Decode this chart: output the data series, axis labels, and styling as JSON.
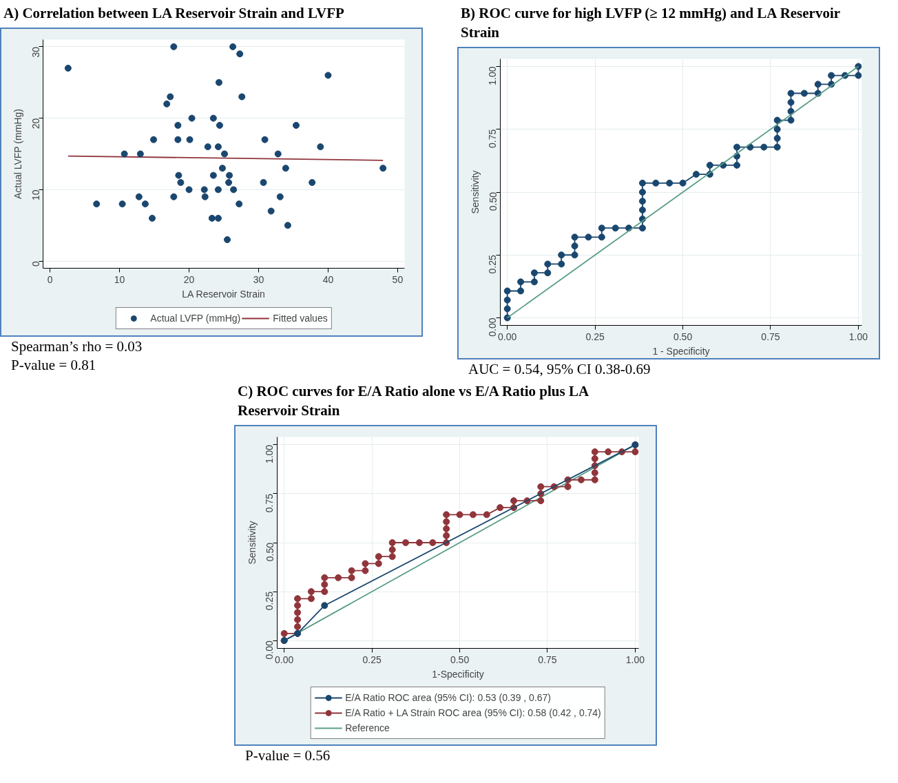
{
  "chart_data": [
    {
      "type": "scatter",
      "title": "A) Correlation between LA Reservoir Strain and LVFP",
      "xlabel": "LA Reservoir Strain",
      "ylabel": "Actual LVFP (mmHg)",
      "xlim": [
        -1,
        51
      ],
      "ylim": [
        -1,
        31
      ],
      "xticks": [
        0,
        10,
        20,
        30,
        40,
        50
      ],
      "yticks": [
        0,
        10,
        20,
        30
      ],
      "grid": "y",
      "legend": "bottom",
      "marker": "circle",
      "series": [
        {
          "name": "Actual LVFP (mmHg)",
          "type": "scatter",
          "color": "#1a476f",
          "x": [
            2.6,
            17.8,
            26.3,
            27.3,
            40,
            24.3,
            17.3,
            27.6,
            16.8,
            20.4,
            23.5,
            18.4,
            24.4,
            35.4,
            14.9,
            18.4,
            20.1,
            30.9,
            22.7,
            24.2,
            38.9,
            10.7,
            13,
            25.1,
            32.8,
            24.8,
            33.9,
            47.9,
            18.5,
            23.5,
            25.8,
            18.8,
            25.7,
            30.7,
            37.7,
            20,
            22.2,
            24.2,
            26.4,
            17.8,
            12.8,
            22.3,
            33.1,
            6.7,
            10.4,
            13.7,
            27.2,
            31.8,
            14.7,
            23.3,
            24.2,
            34.2,
            25.5
          ],
          "values": [
            27,
            30,
            30,
            29,
            26,
            25,
            23,
            23,
            22,
            20,
            20,
            19,
            19,
            19,
            17,
            17,
            17,
            17,
            16,
            16,
            16,
            15,
            15,
            15,
            15,
            13,
            13,
            13,
            12,
            12,
            12,
            11,
            11,
            11,
            11,
            10,
            10,
            10,
            10,
            9,
            9,
            9,
            9,
            8,
            8,
            8,
            8,
            7,
            6,
            6,
            6,
            5,
            3
          ]
        },
        {
          "name": "Fitted values",
          "type": "line",
          "marker": "none",
          "color": "#90353b",
          "x": [
            2.6,
            47.9
          ],
          "values": [
            14.7,
            14.1
          ]
        }
      ],
      "annotations": [
        "Spearman’s rho = 0.03",
        "P-value = 0.81"
      ]
    },
    {
      "type": "line",
      "title": "B) ROC curve for high LVFP (≥ 12 mmHg) and LA Reservoir Strain",
      "xlabel": "1 - Specificity",
      "ylabel": "Sensitivity",
      "xlim": [
        -0.02,
        1.01
      ],
      "ylim": [
        -0.03,
        1.03
      ],
      "xticks": [
        {
          "value": 0,
          "label": "0.00"
        },
        {
          "value": 0.25,
          "label": "0.25"
        },
        {
          "value": 0.5,
          "label": "0.50"
        },
        {
          "value": 0.75,
          "label": "0.75"
        },
        {
          "value": 1,
          "label": "1.00"
        }
      ],
      "yticks": [
        {
          "value": 0,
          "label": "0.00"
        },
        {
          "value": 0.25,
          "label": "0.25"
        },
        {
          "value": 0.5,
          "label": "0.50"
        },
        {
          "value": 0.75,
          "label": "0.75"
        },
        {
          "value": 1,
          "label": "1.00"
        }
      ],
      "grid": true,
      "marker": "circle",
      "series": [
        {
          "color": "#5a9e86",
          "marker": "none",
          "x": [
            0,
            1
          ],
          "values": [
            0,
            1
          ]
        },
        {
          "color": "#1a476f",
          "x": [
            0,
            0,
            0,
            0,
            0.038,
            0.038,
            0.077,
            0.077,
            0.115,
            0.115,
            0.154,
            0.154,
            0.192,
            0.192,
            0.192,
            0.231,
            0.269,
            0.269,
            0.308,
            0.346,
            0.385,
            0.385,
            0.385,
            0.385,
            0.385,
            0.385,
            0.423,
            0.462,
            0.5,
            0.538,
            0.577,
            0.577,
            0.615,
            0.654,
            0.654,
            0.654,
            0.692,
            0.731,
            0.769,
            0.769,
            0.769,
            0.769,
            0.808,
            0.808,
            0.808,
            0.808,
            0.846,
            0.885,
            0.885,
            0.923,
            0.923,
            0.962,
            1,
            1
          ],
          "values": [
            0,
            0.036,
            0.071,
            0.107,
            0.107,
            0.143,
            0.143,
            0.179,
            0.179,
            0.214,
            0.214,
            0.25,
            0.25,
            0.286,
            0.321,
            0.321,
            0.321,
            0.357,
            0.357,
            0.357,
            0.357,
            0.393,
            0.429,
            0.464,
            0.5,
            0.536,
            0.536,
            0.536,
            0.536,
            0.571,
            0.571,
            0.607,
            0.607,
            0.607,
            0.643,
            0.679,
            0.679,
            0.679,
            0.679,
            0.714,
            0.75,
            0.786,
            0.786,
            0.821,
            0.857,
            0.893,
            0.893,
            0.893,
            0.929,
            0.929,
            0.964,
            0.964,
            0.964,
            1
          ]
        }
      ],
      "annotations": [
        "AUC = 0.54, 95% CI 0.38-0.69"
      ]
    },
    {
      "type": "line",
      "title": "C) ROC curves for E/A Ratio alone vs E/A Ratio plus LA Reservoir Strain",
      "xlabel": "1-Specificity",
      "ylabel": "Sensitivity",
      "xlim": [
        -0.02,
        1.01
      ],
      "ylim": [
        -0.04,
        1.04
      ],
      "xticks": [
        {
          "value": 0,
          "label": "0.00"
        },
        {
          "value": 0.25,
          "label": "0.25"
        },
        {
          "value": 0.5,
          "label": "0.50"
        },
        {
          "value": 0.75,
          "label": "0.75"
        },
        {
          "value": 1,
          "label": "1.00"
        }
      ],
      "yticks": [
        {
          "value": 0,
          "label": "0.00"
        },
        {
          "value": 0.25,
          "label": "0.25"
        },
        {
          "value": 0.5,
          "label": "0.50"
        },
        {
          "value": 0.75,
          "label": "0.75"
        },
        {
          "value": 1,
          "label": "1.00"
        }
      ],
      "grid": true,
      "legend": "bottom",
      "marker": "circle",
      "series": [
        {
          "name": "E/A Ratio ROC area (95% CI): 0.53 (0.39 , 0.67)",
          "color": "#1a476f",
          "x": [
            0,
            0.038,
            0.115,
            1
          ],
          "values": [
            0,
            0.036,
            0.179,
            1
          ]
        },
        {
          "name": "E/A Ratio + LA Strain ROC area (95% CI): 0.58 (0.42 , 0.74)",
          "color": "#90353b",
          "x": [
            0,
            0,
            0.038,
            0.038,
            0.038,
            0.038,
            0.038,
            0.038,
            0.077,
            0.077,
            0.115,
            0.115,
            0.115,
            0.154,
            0.192,
            0.192,
            0.231,
            0.231,
            0.269,
            0.269,
            0.308,
            0.308,
            0.308,
            0.346,
            0.385,
            0.423,
            0.462,
            0.462,
            0.462,
            0.462,
            0.462,
            0.5,
            0.538,
            0.577,
            0.615,
            0.654,
            0.654,
            0.692,
            0.731,
            0.731,
            0.731,
            0.769,
            0.808,
            0.808,
            0.846,
            0.885,
            0.885,
            0.885,
            0.885,
            0.885,
            0.923,
            0.962,
            1,
            1
          ],
          "values": [
            0,
            0.036,
            0.036,
            0.071,
            0.107,
            0.143,
            0.179,
            0.214,
            0.214,
            0.25,
            0.25,
            0.286,
            0.321,
            0.321,
            0.321,
            0.357,
            0.357,
            0.393,
            0.393,
            0.429,
            0.429,
            0.464,
            0.5,
            0.5,
            0.5,
            0.5,
            0.5,
            0.536,
            0.571,
            0.607,
            0.643,
            0.643,
            0.643,
            0.643,
            0.679,
            0.679,
            0.714,
            0.714,
            0.714,
            0.75,
            0.786,
            0.786,
            0.786,
            0.821,
            0.821,
            0.821,
            0.857,
            0.893,
            0.929,
            0.964,
            0.964,
            0.964,
            0.964,
            1
          ]
        },
        {
          "name": "Reference",
          "color": "#5a9e86",
          "marker": "none",
          "x": [
            0,
            1
          ],
          "values": [
            0,
            1
          ]
        }
      ],
      "annotations": [
        "P-value = 0.56"
      ]
    }
  ]
}
